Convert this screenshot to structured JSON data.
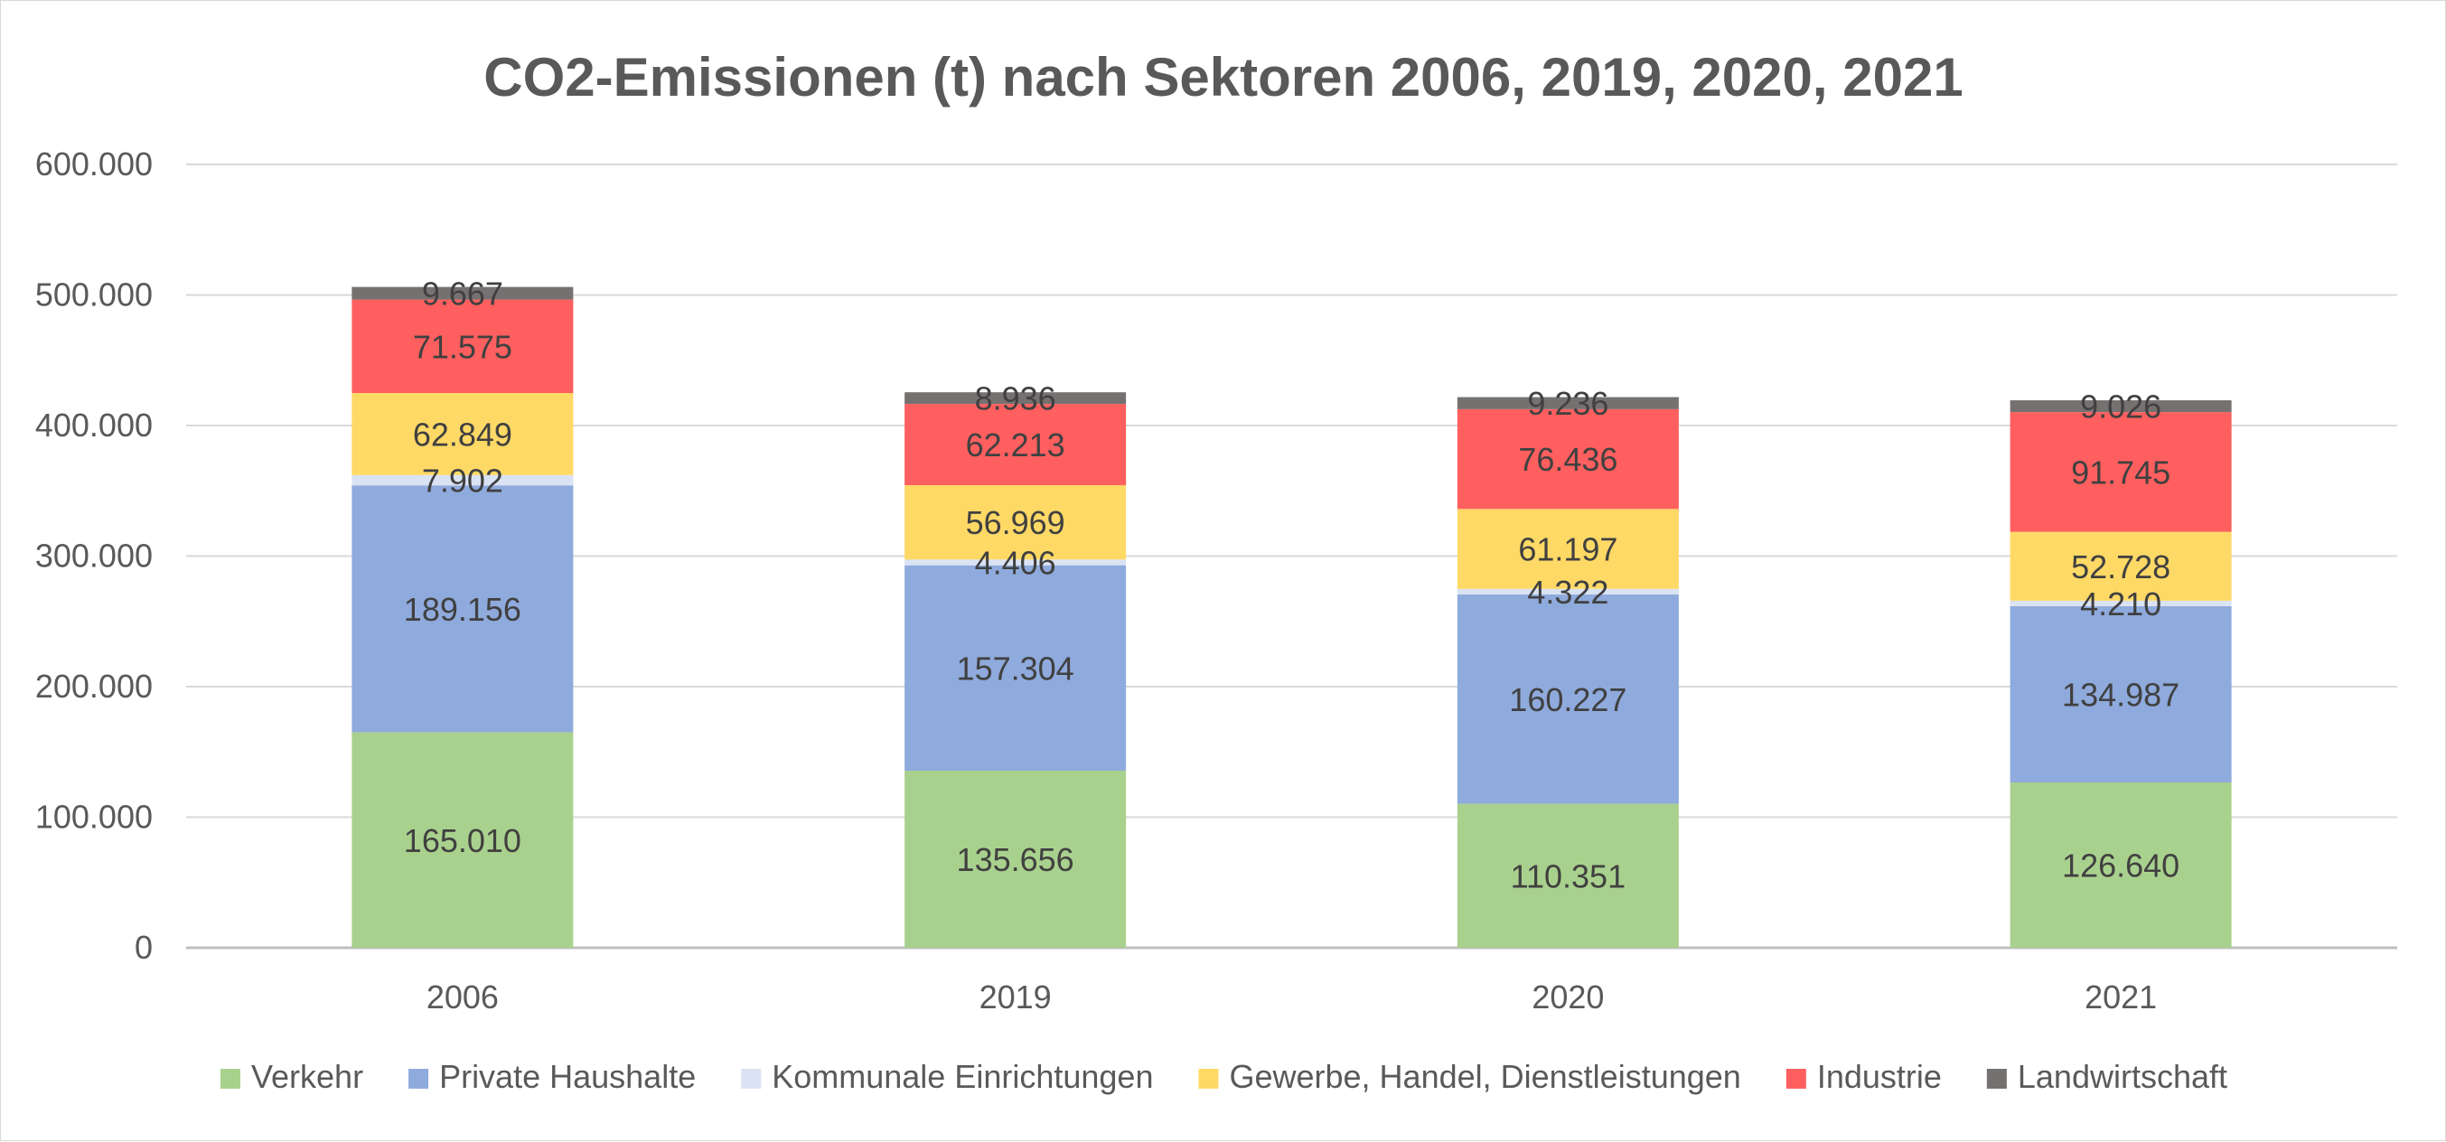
{
  "chart_data": {
    "type": "bar",
    "stacked": true,
    "title": "CO2-Emissionen (t) nach Sektoren 2006, 2019, 2020, 2021",
    "xlabel": "",
    "ylabel": "",
    "categories": [
      "2006",
      "2019",
      "2020",
      "2021"
    ],
    "ylim": [
      0,
      600000
    ],
    "yticks": [
      0,
      100000,
      200000,
      300000,
      400000,
      500000,
      600000
    ],
    "ytick_labels": [
      "0",
      "100.000",
      "200.000",
      "300.000",
      "400.000",
      "500.000",
      "600.000"
    ],
    "grid": true,
    "legend_position": "bottom",
    "series": [
      {
        "name": "Verkehr",
        "color": "#a9d18e",
        "values": [
          165010,
          135656,
          110351,
          126640
        ],
        "labels": [
          "165.010",
          "135.656",
          "110.351",
          "126.640"
        ]
      },
      {
        "name": "Private Haushalte",
        "color": "#8faadc",
        "values": [
          189156,
          157304,
          160227,
          134987
        ],
        "labels": [
          "189.156",
          "157.304",
          "160.227",
          "134.987"
        ]
      },
      {
        "name": "Kommunale Einrichtungen",
        "color": "#dae3f3",
        "values": [
          7902,
          4406,
          4322,
          4210
        ],
        "labels": [
          "7.902",
          "4.406",
          "4.322",
          "4.210"
        ]
      },
      {
        "name": "Gewerbe, Handel, Dienstleistungen",
        "color": "#ffd966",
        "values": [
          62849,
          56969,
          61197,
          52728
        ],
        "labels": [
          "62.849",
          "56.969",
          "61.197",
          "52.728"
        ]
      },
      {
        "name": "Industrie",
        "color": "#ff5f5f",
        "values": [
          71575,
          62213,
          76436,
          91745
        ],
        "labels": [
          "71.575",
          "62.213",
          "76.436",
          "91.745"
        ]
      },
      {
        "name": "Landwirtschaft",
        "color": "#767171",
        "values": [
          9667,
          8936,
          9236,
          9026
        ],
        "labels": [
          "9.667",
          "8.936",
          "9.236",
          "9.026"
        ]
      }
    ],
    "colors": {
      "gridline": "#d9d9d9",
      "axis": "#bfbfbf",
      "text": "#595959",
      "label": "#404040"
    }
  }
}
